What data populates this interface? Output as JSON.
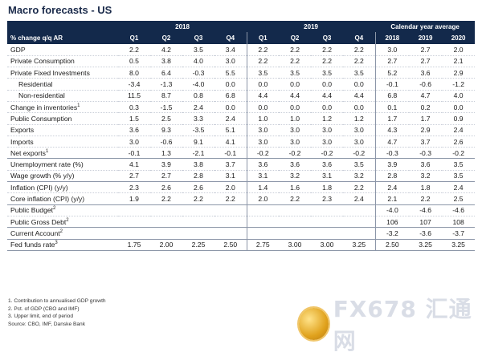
{
  "title": "Macro forecasts - US",
  "header": {
    "label": "% change q/q AR",
    "groups": [
      "2018",
      "2019",
      "Calendar year average"
    ],
    "quarters": [
      "Q1",
      "Q2",
      "Q3",
      "Q4",
      "Q1",
      "Q2",
      "Q3",
      "Q4"
    ],
    "years": [
      "2018",
      "2019",
      "2020"
    ]
  },
  "rows": [
    {
      "label": "GDP",
      "sup": "",
      "indent": false,
      "sep": false,
      "v": [
        "2.2",
        "4.2",
        "3.5",
        "3.4",
        "2.2",
        "2.2",
        "2.2",
        "2.2",
        "3.0",
        "2.7",
        "2.0"
      ]
    },
    {
      "label": "Private Consumption",
      "sup": "",
      "indent": false,
      "sep": false,
      "v": [
        "0.5",
        "3.8",
        "4.0",
        "3.0",
        "2.2",
        "2.2",
        "2.2",
        "2.2",
        "2.7",
        "2.7",
        "2.1"
      ]
    },
    {
      "label": "Private Fixed Investments",
      "sup": "",
      "indent": false,
      "sep": false,
      "v": [
        "8.0",
        "6.4",
        "-0.3",
        "5.5",
        "3.5",
        "3.5",
        "3.5",
        "3.5",
        "5.2",
        "3.6",
        "2.9"
      ]
    },
    {
      "label": "Residential",
      "sup": "",
      "indent": true,
      "sep": false,
      "v": [
        "-3.4",
        "-1.3",
        "-4.0",
        "0.0",
        "0.0",
        "0.0",
        "0.0",
        "0.0",
        "-0.1",
        "-0.6",
        "-1.2"
      ]
    },
    {
      "label": "Non-residential",
      "sup": "",
      "indent": true,
      "sep": false,
      "v": [
        "11.5",
        "8.7",
        "0.8",
        "6.8",
        "4.4",
        "4.4",
        "4.4",
        "4.4",
        "6.8",
        "4.7",
        "4.0"
      ]
    },
    {
      "label": "Change in inventories",
      "sup": "1",
      "indent": false,
      "sep": false,
      "v": [
        "0.3",
        "-1.5",
        "2.4",
        "0.0",
        "0.0",
        "0.0",
        "0.0",
        "0.0",
        "0.1",
        "0.2",
        "0.0"
      ]
    },
    {
      "label": "Public Consumption",
      "sup": "",
      "indent": false,
      "sep": false,
      "v": [
        "1.5",
        "2.5",
        "3.3",
        "2.4",
        "1.0",
        "1.0",
        "1.2",
        "1.2",
        "1.7",
        "1.7",
        "0.9"
      ]
    },
    {
      "label": "Exports",
      "sup": "",
      "indent": false,
      "sep": false,
      "v": [
        "3.6",
        "9.3",
        "-3.5",
        "5.1",
        "3.0",
        "3.0",
        "3.0",
        "3.0",
        "4.3",
        "2.9",
        "2.4"
      ]
    },
    {
      "label": "Imports",
      "sup": "",
      "indent": false,
      "sep": false,
      "v": [
        "3.0",
        "-0.6",
        "9.1",
        "4.1",
        "3.0",
        "3.0",
        "3.0",
        "3.0",
        "4.7",
        "3.7",
        "2.6"
      ]
    },
    {
      "label": "Net exports",
      "sup": "1",
      "indent": false,
      "sep": false,
      "v": [
        "-0.1",
        "1.3",
        "-2.1",
        "-0.1",
        "-0.2",
        "-0.2",
        "-0.2",
        "-0.2",
        "-0.3",
        "-0.3",
        "-0.2"
      ]
    },
    {
      "label": "Unemployment rate (%)",
      "sup": "",
      "indent": false,
      "sep": true,
      "v": [
        "4.1",
        "3.9",
        "3.8",
        "3.7",
        "3.6",
        "3.6",
        "3.6",
        "3.5",
        "3.9",
        "3.6",
        "3.5"
      ]
    },
    {
      "label": "Wage growth (% y/y)",
      "sup": "",
      "indent": false,
      "sep": false,
      "v": [
        "2.7",
        "2.7",
        "2.8",
        "3.1",
        "3.1",
        "3.2",
        "3.1",
        "3.2",
        "2.8",
        "3.2",
        "3.5"
      ]
    },
    {
      "label": "Inflation (CPI) (y/y)",
      "sup": "",
      "indent": false,
      "sep": true,
      "v": [
        "2.3",
        "2.6",
        "2.6",
        "2.0",
        "1.4",
        "1.6",
        "1.8",
        "2.2",
        "2.4",
        "1.8",
        "2.4"
      ]
    },
    {
      "label": "Core inflation (CPI) (y/y)",
      "sup": "",
      "indent": false,
      "sep": false,
      "v": [
        "1.9",
        "2.2",
        "2.2",
        "2.2",
        "2.0",
        "2.2",
        "2.3",
        "2.4",
        "2.1",
        "2.2",
        "2.5"
      ]
    },
    {
      "label": "Public Budget",
      "sup": "2",
      "indent": false,
      "sep": true,
      "v": [
        "",
        "",
        "",
        "",
        "",
        "",
        "",
        "",
        "-4.0",
        "-4.6",
        "-4.6"
      ]
    },
    {
      "label": "Public Gross Debt",
      "sup": "2",
      "indent": false,
      "sep": false,
      "v": [
        "",
        "",
        "",
        "",
        "",
        "",
        "",
        "",
        "106",
        "107",
        "108"
      ]
    },
    {
      "label": "Current Account",
      "sup": "2",
      "indent": false,
      "sep": true,
      "v": [
        "",
        "",
        "",
        "",
        "",
        "",
        "",
        "",
        "-3.2",
        "-3.6",
        "-3.7"
      ]
    },
    {
      "label": "Fed funds rate",
      "sup": "3",
      "indent": false,
      "sep": true,
      "v": [
        "1.75",
        "2.00",
        "2.25",
        "2.50",
        "2.75",
        "3.00",
        "3.00",
        "3.25",
        "2.50",
        "3.25",
        "3.25"
      ]
    }
  ],
  "notes": [
    "1. Contribution to annualised GDP growth",
    "2. Pct. of GDP (CBO and IMF)",
    "3. Upper limit, end of period",
    "Source: CBO, IMF, Danske Bank"
  ],
  "watermark": {
    "text": "FX678 汇通网"
  }
}
